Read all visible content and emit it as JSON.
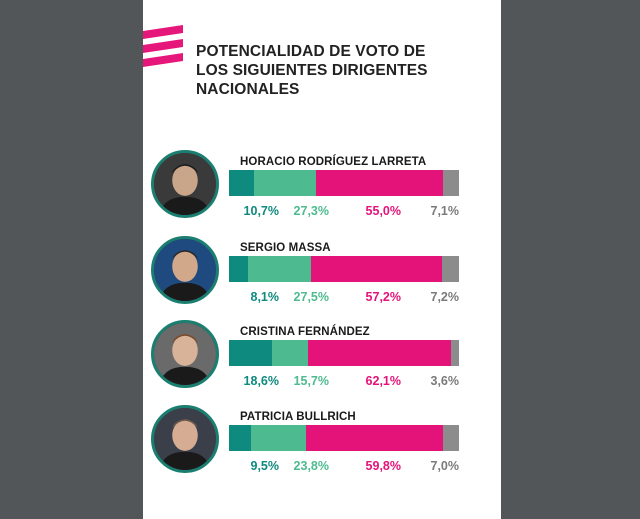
{
  "title_lines": [
    "POTENCIALIDAD DE VOTO DE",
    "LOS SIGUIENTES DIRIGENTES",
    "NACIONALES"
  ],
  "colors": {
    "seg1": "#0e8a7e",
    "seg2": "#4dbb8f",
    "seg3": "#e3137a",
    "seg4": "#8c8c8c",
    "label4": "#7a7a7a",
    "logo": "#e6177a",
    "avatar_border": "#1a7f70"
  },
  "chart_data": {
    "type": "bar",
    "orientation": "horizontal-stacked",
    "title": "POTENCIALIDAD DE VOTO DE LOS SIGUIENTES DIRIGENTES NACIONALES",
    "categories": [
      "HORACIO RODRÍGUEZ LARRETA",
      "SERGIO MASSA",
      "CRISTINA FERNÁNDEZ",
      "PATRICIA BULLRICH"
    ],
    "series": [
      {
        "values": [
          10.7,
          8.1,
          18.6,
          9.5
        ],
        "labels": [
          "10,7%",
          "8,1%",
          "18,6%",
          "9,5%"
        ]
      },
      {
        "values": [
          27.3,
          27.5,
          15.7,
          23.8
        ],
        "labels": [
          "27,3%",
          "27,5%",
          "15,7%",
          "23,8%"
        ]
      },
      {
        "values": [
          55.0,
          57.2,
          62.1,
          59.8
        ],
        "labels": [
          "55,0%",
          "57,2%",
          "62,1%",
          "59,8%"
        ]
      },
      {
        "values": [
          7.1,
          7.2,
          3.6,
          7.0
        ],
        "labels": [
          "7,1%",
          "7,2%",
          "3,6%",
          "7,0%"
        ]
      }
    ]
  }
}
